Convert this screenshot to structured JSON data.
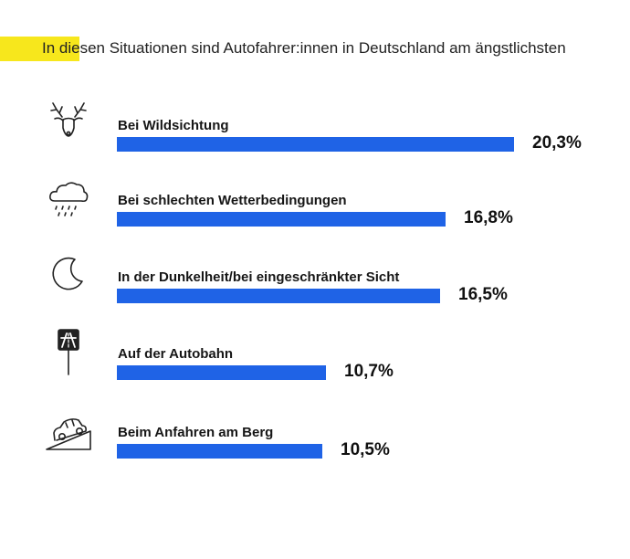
{
  "title": "In diesen Situationen sind Autofahrer:innen in Deutschland am ängstlichsten",
  "colors": {
    "bar": "#1f63e6",
    "highlight": "#f7e71c",
    "text": "#111111"
  },
  "chart_data": {
    "type": "bar",
    "orientation": "horizontal",
    "title": "In diesen Situationen sind Autofahrer:innen in Deutschland am ängstlichsten",
    "categories": [
      "Bei Wildsichtung",
      "Bei schlechten Wetterbedingungen",
      "In der Dunkelheit/bei eingeschränkter Sicht",
      "Auf der Autobahn",
      "Beim Anfahren am Berg"
    ],
    "values": [
      20.3,
      16.8,
      16.5,
      10.7,
      10.5
    ],
    "value_labels": [
      "20,3%",
      "16,8%",
      "16,5%",
      "10,7%",
      "10,5%"
    ],
    "icons": [
      "deer-icon",
      "rain-cloud-icon",
      "moon-icon",
      "autobahn-sign-icon",
      "car-on-hill-icon"
    ],
    "unit": "%",
    "grid": false,
    "legend": "none"
  }
}
